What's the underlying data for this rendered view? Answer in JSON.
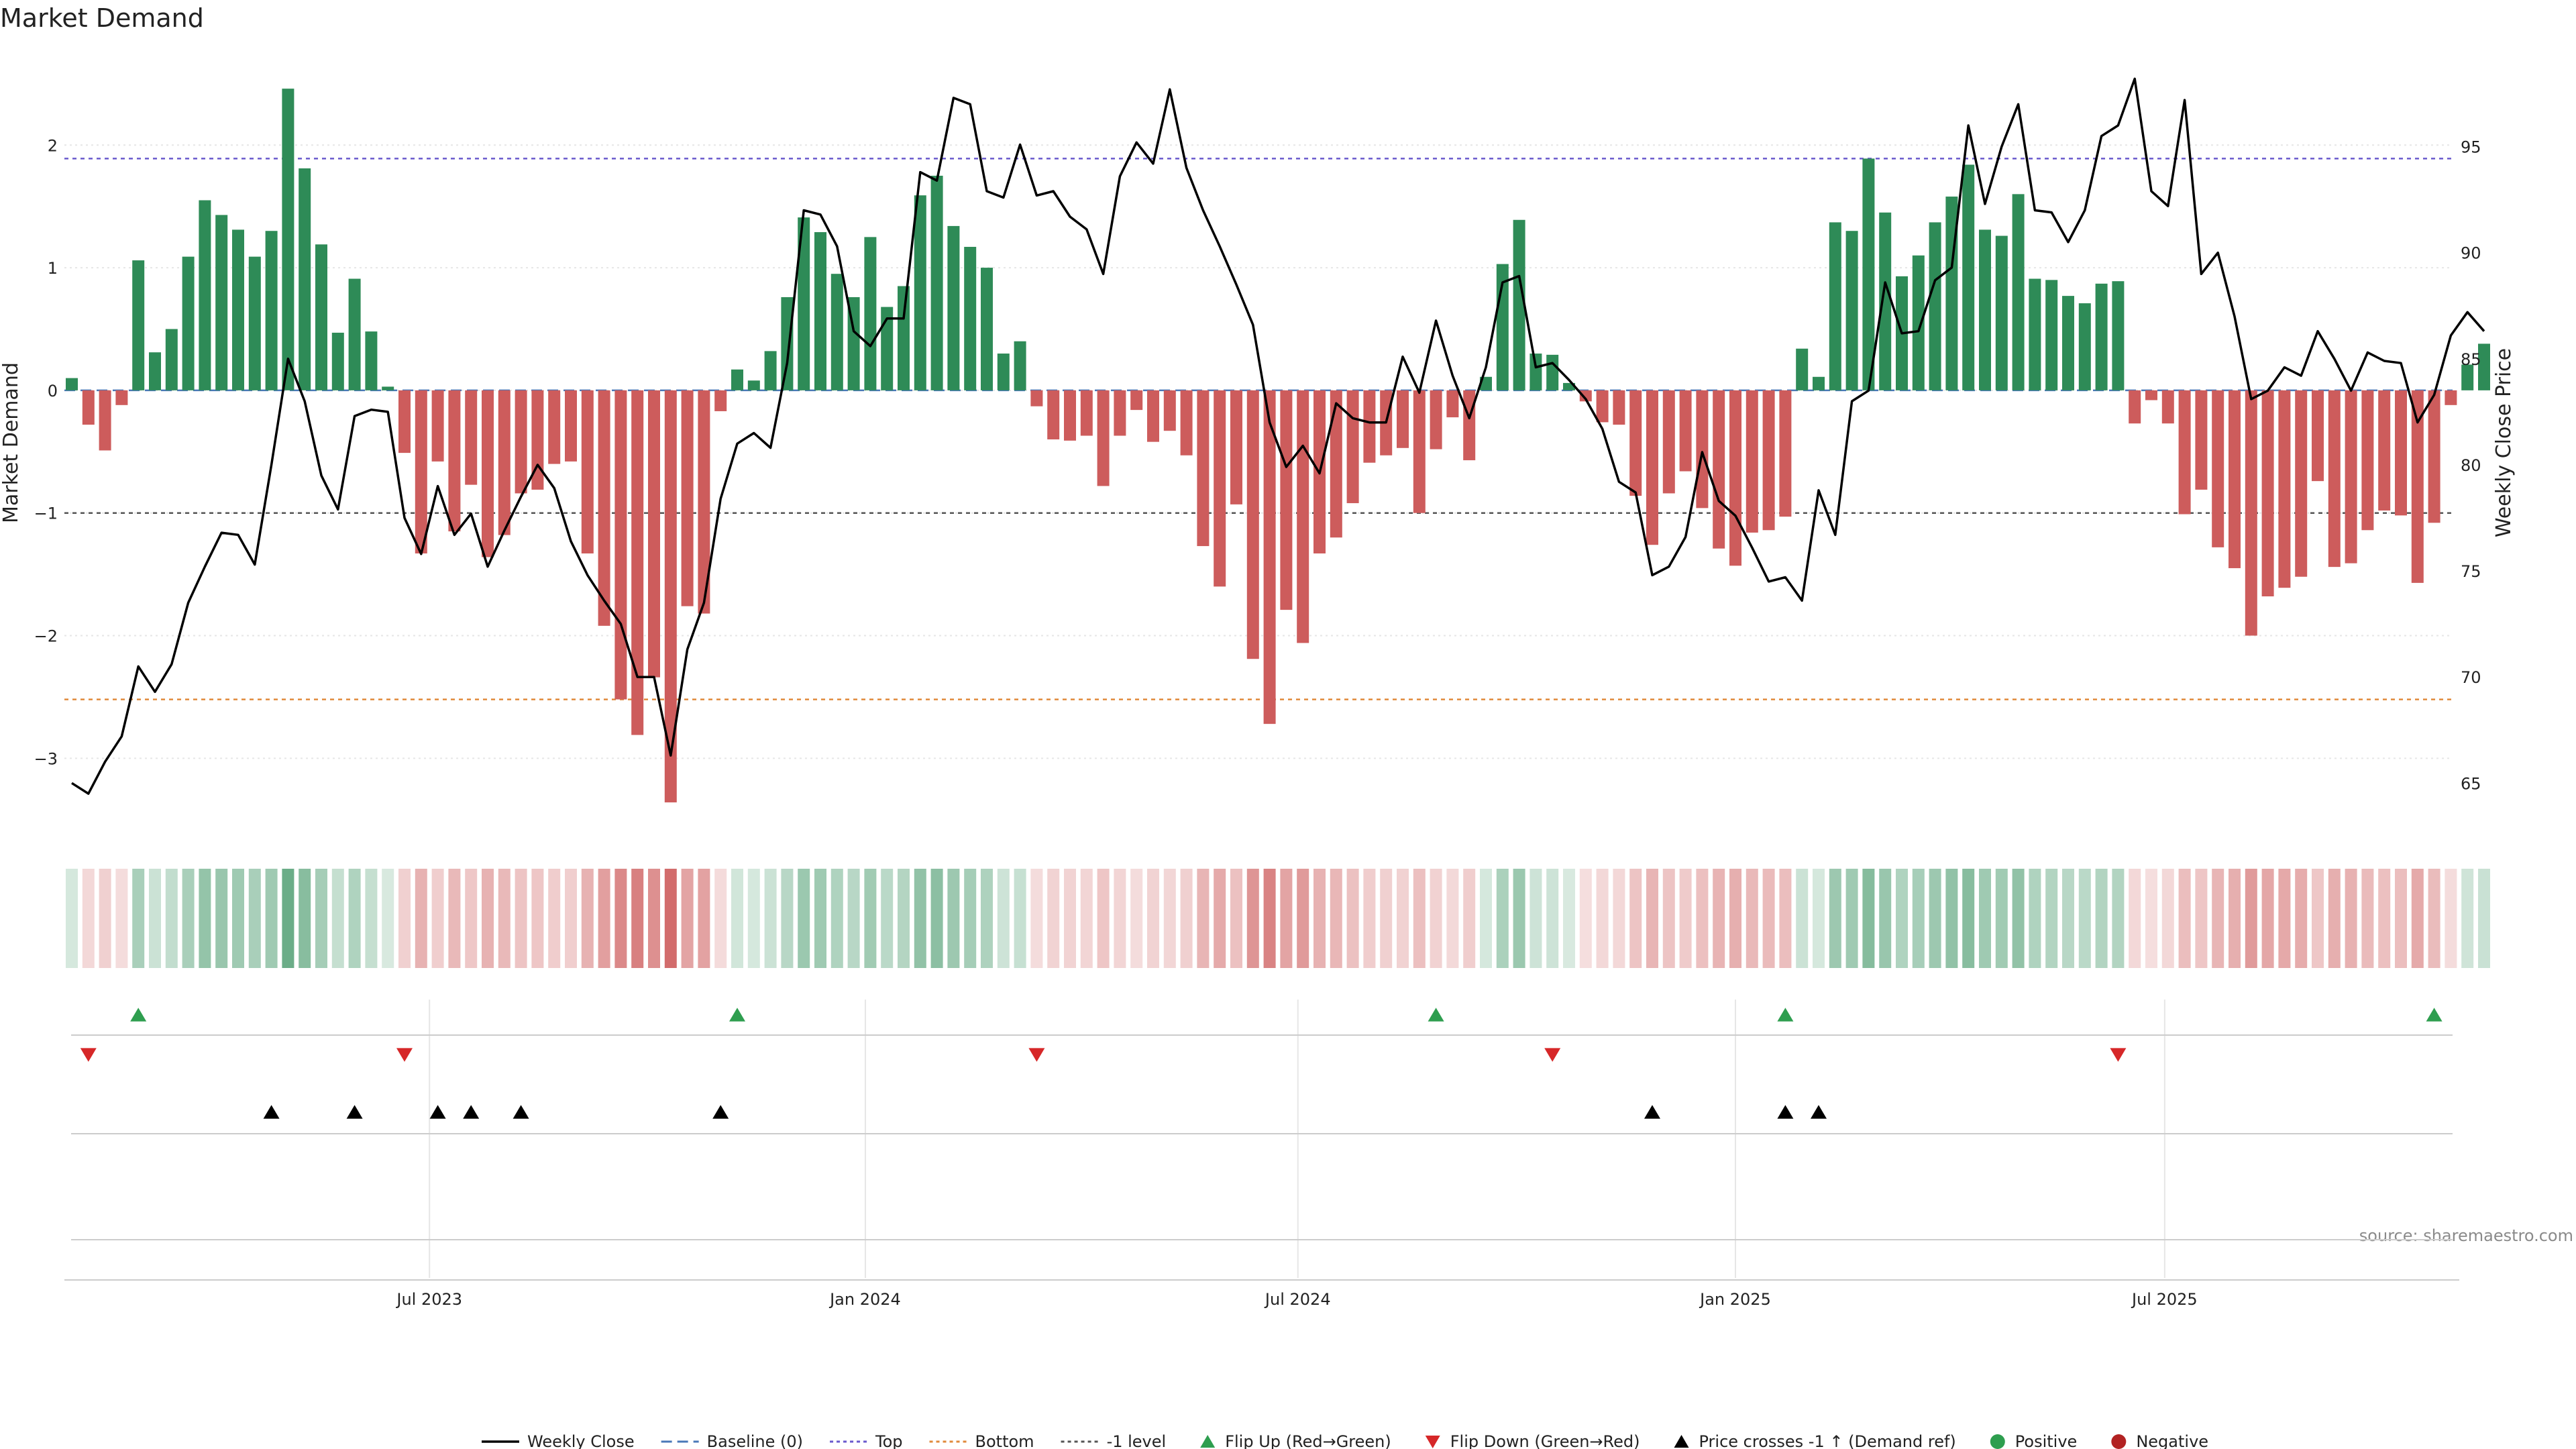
{
  "chart_data": {
    "type": "bar",
    "title": "Market Demand",
    "ylabel": "Market Demand",
    "y2label": "Weekly Close Price",
    "source": "source: sharemaestro.com",
    "ylim": [
      -3.6,
      2.8
    ],
    "y2lim": [
      62.7,
      99.7
    ],
    "yticks": [
      2,
      1,
      0,
      -1,
      -2,
      -3
    ],
    "ytick_labels": [
      "2",
      "1",
      "0",
      "−1",
      "−2",
      "−3"
    ],
    "y2ticks": [
      95,
      90,
      85,
      80,
      75,
      70,
      65
    ],
    "y2tick_labels": [
      "95",
      "90",
      "85",
      "80",
      "75",
      "70",
      "65"
    ],
    "start_date": "2023-01-15",
    "xticks": [
      {
        "label": "Jul 2023",
        "week": 21.5
      },
      {
        "label": "Jan 2024",
        "week": 47.7
      },
      {
        "label": "Jul 2024",
        "week": 73.7
      },
      {
        "label": "Jan 2025",
        "week": 100.0
      },
      {
        "label": "Jul 2025",
        "week": 125.8
      }
    ],
    "reference_lines": [
      {
        "name": "Top",
        "value": 1.89,
        "color": "#6a5acd",
        "dash": "6,6"
      },
      {
        "name": "Bottom",
        "value": -2.52,
        "color": "#e08a3c",
        "dash": "6,6"
      },
      {
        "name": "-1 level",
        "value": -1.0,
        "color": "#555555",
        "dash": "6,6"
      },
      {
        "name": "Baseline (0)",
        "value": 0,
        "color": "#4a78b8",
        "dash": "16,8"
      }
    ],
    "demand": [
      0.1,
      -0.28,
      -0.49,
      -0.12,
      1.06,
      0.31,
      0.5,
      1.09,
      1.55,
      1.43,
      1.31,
      1.09,
      1.3,
      2.46,
      1.81,
      1.19,
      0.47,
      0.91,
      0.48,
      0.03,
      -0.51,
      -1.33,
      -0.58,
      -1.15,
      -0.77,
      -1.36,
      -1.18,
      -0.84,
      -0.81,
      -0.6,
      -0.58,
      -1.33,
      -1.92,
      -2.52,
      -2.81,
      -2.34,
      -3.36,
      -1.76,
      -1.82,
      -0.17,
      0.17,
      0.08,
      0.32,
      0.76,
      1.41,
      1.29,
      0.95,
      0.76,
      1.25,
      0.68,
      0.85,
      1.59,
      1.75,
      1.34,
      1.17,
      1.0,
      0.3,
      0.4,
      -0.13,
      -0.4,
      -0.41,
      -0.37,
      -0.78,
      -0.37,
      -0.16,
      -0.42,
      -0.33,
      -0.53,
      -1.27,
      -1.6,
      -0.93,
      -2.19,
      -2.72,
      -1.79,
      -2.06,
      -1.33,
      -1.2,
      -0.92,
      -0.59,
      -0.53,
      -0.47,
      -1.0,
      -0.48,
      -0.22,
      -0.57,
      0.11,
      1.03,
      1.39,
      0.3,
      0.29,
      0.06,
      -0.09,
      -0.26,
      -0.28,
      -0.86,
      -1.26,
      -0.84,
      -0.66,
      -0.96,
      -1.29,
      -1.43,
      -1.16,
      -1.14,
      -1.03,
      0.34,
      0.11,
      1.37,
      1.3,
      1.89,
      1.45,
      0.93,
      1.1,
      1.37,
      1.58,
      1.84,
      1.31,
      1.26,
      1.6,
      0.91,
      0.9,
      0.77,
      0.71,
      0.87,
      0.89,
      -0.27,
      -0.08,
      -0.27,
      -1.01,
      -0.81,
      -1.28,
      -1.45,
      -2.0,
      -1.68,
      -1.61,
      -1.52,
      -0.74,
      -1.44,
      -1.41,
      -1.14,
      -0.98,
      -1.02,
      -1.57,
      -1.08,
      -0.12,
      0.21,
      0.38
    ],
    "price": [
      65.0,
      64.5,
      66.0,
      67.2,
      70.5,
      69.3,
      70.6,
      73.5,
      75.2,
      76.8,
      76.7,
      75.3,
      80.0,
      85.0,
      83.0,
      79.5,
      77.9,
      82.3,
      82.6,
      82.5,
      77.5,
      75.8,
      79.0,
      76.7,
      77.7,
      75.2,
      76.9,
      78.5,
      80.0,
      78.9,
      76.4,
      74.8,
      73.6,
      72.5,
      70.0,
      70.0,
      66.3,
      71.3,
      73.5,
      78.4,
      81.0,
      81.5,
      80.8,
      84.8,
      92.0,
      91.8,
      90.3,
      86.3,
      85.6,
      86.9,
      86.9,
      93.8,
      93.4,
      97.3,
      97.0,
      92.9,
      92.6,
      95.1,
      92.7,
      92.9,
      91.7,
      91.1,
      89.0,
      93.6,
      95.2,
      94.2,
      97.7,
      94.0,
      92.0,
      90.3,
      88.5,
      86.6,
      82.0,
      79.9,
      80.9,
      79.6,
      82.9,
      82.2,
      82.0,
      82.0,
      85.1,
      83.4,
      86.8,
      84.2,
      82.2,
      84.6,
      88.6,
      88.9,
      84.6,
      84.8,
      84.0,
      83.1,
      81.7,
      79.2,
      78.7,
      74.8,
      75.2,
      76.6,
      80.6,
      78.3,
      77.6,
      76.1,
      74.5,
      74.7,
      73.6,
      78.8,
      76.7,
      83.0,
      83.5,
      88.6,
      86.2,
      86.3,
      88.7,
      89.3,
      96.0,
      92.3,
      95.0,
      97.0,
      92.0,
      91.9,
      90.5,
      92.0,
      95.5,
      96.0,
      98.2,
      92.9,
      92.2,
      97.2,
      89.0,
      90.0,
      87.0,
      83.1,
      83.5,
      84.6,
      84.2,
      86.3,
      85.0,
      83.5,
      85.3,
      84.9,
      84.8,
      82.0,
      83.3,
      86.1,
      87.2,
      86.3
    ],
    "flip_up_weeks": [
      4,
      40,
      82,
      103,
      142
    ],
    "flip_down_weeks": [
      1,
      20,
      58,
      89,
      123
    ],
    "price_cross_weeks": [
      12,
      17,
      22,
      24,
      27,
      39,
      95,
      103,
      105
    ],
    "legend": [
      {
        "label": "Weekly Close",
        "kind": "line",
        "color": "#000000"
      },
      {
        "label": "Baseline (0)",
        "kind": "dashed",
        "color": "#4a78b8"
      },
      {
        "label": "Top",
        "kind": "dotted",
        "color": "#6a5acd"
      },
      {
        "label": "Bottom",
        "kind": "dotted",
        "color": "#e08a3c"
      },
      {
        "label": "-1 level",
        "kind": "dotted",
        "color": "#555555"
      },
      {
        "label": "Flip Up (Red→Green)",
        "kind": "tri-up",
        "color": "#2e9e4f"
      },
      {
        "label": "Flip Down (Green→Red)",
        "kind": "tri-down",
        "color": "#d62728"
      },
      {
        "label": "Price crosses -1 ↑ (Demand ref)",
        "kind": "tri-up",
        "color": "#000000"
      },
      {
        "label": "Positive",
        "kind": "dot",
        "color": "#2e9e4f"
      },
      {
        "label": "Negative",
        "kind": "dot",
        "color": "#b22222"
      }
    ],
    "colors": {
      "positive": "#2e8b57",
      "negative": "#cd5c5c",
      "price": "#000000",
      "flip_up": "#2e9e4f",
      "flip_down": "#d62728",
      "cross": "#000000",
      "grid": "#e6e6e6",
      "axis": "#cccccc"
    }
  }
}
